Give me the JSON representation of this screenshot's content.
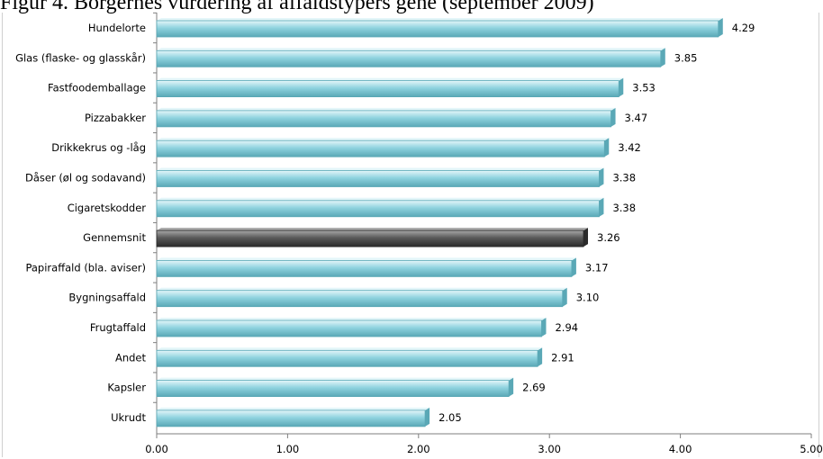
{
  "page": {
    "title": "Figur 4. Borgernes vurdering af affaldstypers gene (september 2009)"
  },
  "colors": {
    "bar_fill": "#8fd3df",
    "bar_edge": "#5aa8b6",
    "bar_highlight": "#e4f6f9",
    "average_fill": "#5a5a5a",
    "average_edge": "#2b2b2b",
    "average_highlight": "#a8a8a8",
    "axis": "#7f7f7f"
  },
  "chart_data": {
    "type": "bar",
    "orientation": "horizontal",
    "categories": [
      "Hundelorte",
      "Glas (flaske- og glasskår)",
      "Fastfoodemballage",
      "Pizzabakker",
      "Drikkekrus og -låg",
      "Dåser (øl og sodavand)",
      "Cigaretskodder",
      "Gennemsnit",
      "Papiraffald (bla. aviser)",
      "Bygningsaffald",
      "Frugtaffald",
      "Andet",
      "Kapsler",
      "Ukrudt"
    ],
    "values": [
      4.29,
      3.85,
      3.53,
      3.47,
      3.42,
      3.38,
      3.38,
      3.26,
      3.17,
      3.1,
      2.94,
      2.91,
      2.69,
      2.05
    ],
    "value_labels": [
      "4.29",
      "3.85",
      "3.53",
      "3.47",
      "3.42",
      "3.38",
      "3.38",
      "3.26",
      "3.17",
      "3.10",
      "2.94",
      "2.91",
      "2.69",
      "2.05"
    ],
    "highlight_category": "Gennemsnit",
    "xlim": [
      0,
      5
    ],
    "xticks": [
      0,
      1,
      2,
      3,
      4,
      5
    ],
    "xtick_labels": [
      "0.00",
      "1.00",
      "2.00",
      "3.00",
      "4.00",
      "5.00"
    ],
    "title": "Figur 4. Borgernes vurdering af affaldstypers gene (september 2009)",
    "xlabel": "",
    "ylabel": "",
    "grid": false,
    "legend": "none"
  }
}
